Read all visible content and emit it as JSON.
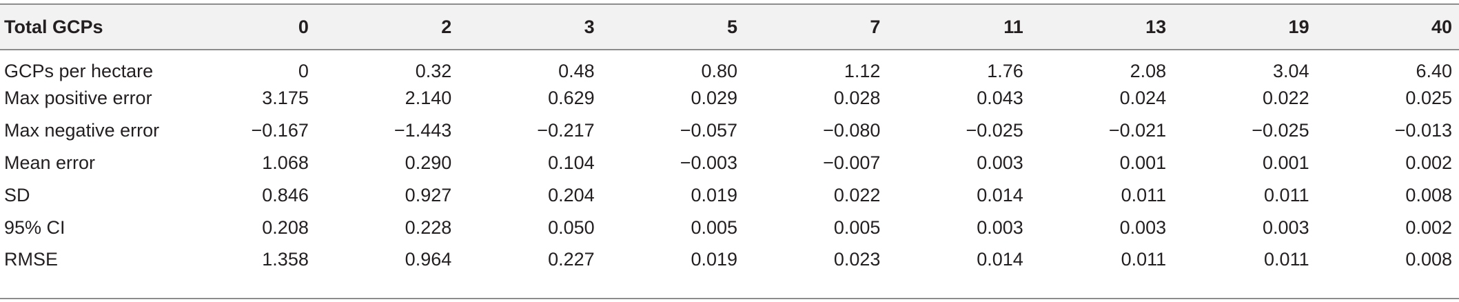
{
  "table": {
    "headers": [
      "Total GCPs",
      "0",
      "2",
      "3",
      "5",
      "7",
      "11",
      "13",
      "19",
      "40"
    ],
    "rows": [
      {
        "label": "GCPs per hectare",
        "values": [
          "0",
          "0.32",
          "0.48",
          "0.80",
          "1.12",
          "1.76",
          "2.08",
          "3.04",
          "6.40"
        ]
      },
      {
        "label": "Max positive error",
        "values": [
          "3.175",
          "2.140",
          "0.629",
          "0.029",
          "0.028",
          "0.043",
          "0.024",
          "0.022",
          "0.025"
        ]
      },
      {
        "label": "Max negative error",
        "values": [
          "−0.167",
          "−1.443",
          "−0.217",
          "−0.057",
          "−0.080",
          "−0.025",
          "−0.021",
          "−0.025",
          "−0.013"
        ]
      },
      {
        "label": "Mean error",
        "values": [
          "1.068",
          "0.290",
          "0.104",
          "−0.003",
          "−0.007",
          "0.003",
          "0.001",
          "0.001",
          "0.002"
        ]
      },
      {
        "label": "SD",
        "values": [
          "0.846",
          "0.927",
          "0.204",
          "0.019",
          "0.022",
          "0.014",
          "0.011",
          "0.011",
          "0.008"
        ]
      },
      {
        "label": "95% CI",
        "values": [
          "0.208",
          "0.228",
          "0.050",
          "0.005",
          "0.005",
          "0.003",
          "0.003",
          "0.003",
          "0.002"
        ]
      },
      {
        "label": "RMSE",
        "values": [
          "1.358",
          "0.964",
          "0.227",
          "0.019",
          "0.023",
          "0.014",
          "0.011",
          "0.011",
          "0.008"
        ]
      }
    ]
  },
  "colors": {
    "header_background": "#f2f2f2",
    "rule": "#8c8c8c",
    "text": "#231f20"
  }
}
